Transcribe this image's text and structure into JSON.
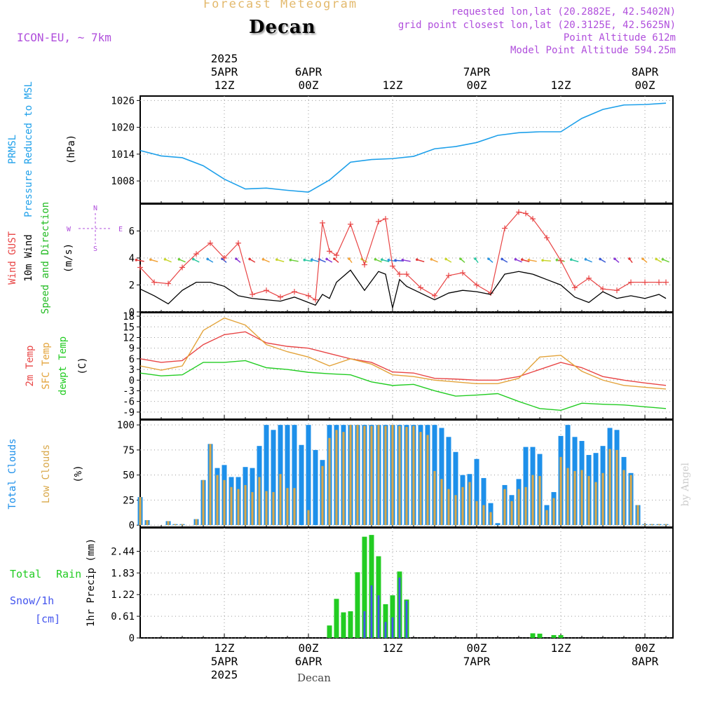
{
  "header": {
    "title": "Forecast Meteogram",
    "place": "Decan",
    "model": "ICON-EU, ~ 7km",
    "requested": "requested lon,lat (20.2882E, 42.5402N)",
    "grid_point": "grid point closest lon,lat (20.3125E, 42.5625N)",
    "point_altitude": "Point Altitude 612m",
    "model_altitude": "Model Point Altitude 594.25m",
    "credit": "by Angel",
    "footer": "Decan"
  },
  "colors": {
    "pressure": "#1ea0ea",
    "gust": "#e84545",
    "wind": "#000000",
    "direction_label": "#22bb22",
    "temp2m": "#e84545",
    "sfc_temp": "#e3a33a",
    "dewpt": "#22cc22",
    "total_clouds": "#1e90ea",
    "low_clouds": "#d9a84a",
    "rain": "#22cc22",
    "snow": "#4455ee",
    "purple": "#b04fdc"
  },
  "time_axis": {
    "top_labels": [
      {
        "hour": 12,
        "lines": [
          "2025",
          "5APR",
          "12Z"
        ]
      },
      {
        "hour": 24,
        "lines": [
          "6APR",
          "00Z"
        ]
      },
      {
        "hour": 36,
        "lines": [
          "12Z"
        ]
      },
      {
        "hour": 48,
        "lines": [
          "7APR",
          "00Z"
        ]
      },
      {
        "hour": 60,
        "lines": [
          "12Z"
        ]
      },
      {
        "hour": 72,
        "lines": [
          "8APR",
          "00Z"
        ]
      }
    ],
    "bottom_labels": [
      {
        "hour": 12,
        "lines": [
          "12Z",
          "5APR",
          "2025"
        ]
      },
      {
        "hour": 24,
        "lines": [
          "00Z",
          "6APR"
        ]
      },
      {
        "hour": 36,
        "lines": [
          "12Z"
        ]
      },
      {
        "hour": 48,
        "lines": [
          "00Z",
          "7APR"
        ]
      },
      {
        "hour": 60,
        "lines": [
          "12Z"
        ]
      },
      {
        "hour": 72,
        "lines": [
          "00Z",
          "8APR"
        ]
      }
    ]
  },
  "chart_data": [
    {
      "type": "line",
      "name": "pressure",
      "ylabels": [
        {
          "text": "PRMSL",
          "color": "#1ea0ea"
        },
        {
          "text": "Pressure Reduced to MSL",
          "color": "#1ea0ea"
        },
        {
          "text": "(hPa)",
          "color": "#000000"
        }
      ],
      "ylim": [
        1003,
        1027
      ],
      "yticks": [
        1008,
        1014,
        1020,
        1026
      ],
      "x": [
        0,
        3,
        6,
        9,
        12,
        15,
        18,
        21,
        24,
        27,
        30,
        33,
        36,
        39,
        42,
        45,
        48,
        51,
        54,
        57,
        60,
        63,
        66,
        69,
        72,
        75
      ],
      "values": [
        1014.8,
        1013.6,
        1013.2,
        1011.4,
        1008.4,
        1006.2,
        1006.4,
        1005.9,
        1005.5,
        1008.2,
        1012.2,
        1012.8,
        1013.0,
        1013.5,
        1015.2,
        1015.7,
        1016.6,
        1018.2,
        1018.8,
        1019.0,
        1019.0,
        1022.0,
        1024.0,
        1025.0,
        1025.1,
        1025.4
      ]
    },
    {
      "type": "line",
      "name": "wind",
      "ylabels": [
        {
          "text": "Wind GUST",
          "color": "#e84545"
        },
        {
          "text": "10m Wind",
          "color": "#000000"
        },
        {
          "text": "Speed and Direction",
          "color": "#22bb22"
        },
        {
          "text": "(m/s)",
          "color": "#000000"
        }
      ],
      "compass": {
        "n": "N",
        "s": "S",
        "w": "W",
        "e": "E"
      },
      "ylim": [
        0,
        8
      ],
      "yticks": [
        0,
        2,
        4,
        6
      ],
      "x": [
        0,
        2,
        4,
        6,
        8,
        10,
        12,
        14,
        16,
        18,
        20,
        22,
        24,
        25,
        26,
        27,
        28,
        30,
        32,
        34,
        35,
        36,
        37,
        38,
        40,
        42,
        44,
        46,
        48,
        50,
        52,
        54,
        55,
        56,
        58,
        60,
        62,
        64,
        66,
        68,
        70,
        72,
        74,
        75
      ],
      "gust": [
        3.3,
        2.2,
        2.1,
        3.3,
        4.3,
        5.1,
        4.0,
        5.1,
        1.3,
        1.6,
        1.1,
        1.5,
        1.2,
        0.9,
        6.6,
        4.5,
        4.2,
        6.5,
        3.5,
        6.7,
        6.9,
        3.4,
        2.8,
        2.8,
        1.8,
        1.2,
        2.7,
        2.9,
        2.0,
        1.4,
        6.2,
        7.4,
        7.3,
        6.9,
        5.5,
        3.8,
        1.8,
        2.5,
        1.7,
        1.6,
        2.2,
        2.2,
        2.2,
        2.2
      ],
      "wind": [
        1.7,
        1.2,
        0.6,
        1.6,
        2.2,
        2.2,
        1.9,
        1.2,
        1.0,
        0.9,
        0.8,
        1.1,
        0.7,
        0.5,
        1.3,
        1.0,
        2.2,
        3.1,
        1.6,
        3.0,
        2.8,
        0.3,
        2.4,
        1.9,
        1.4,
        0.9,
        1.4,
        1.6,
        1.5,
        1.3,
        2.8,
        3.0,
        2.9,
        2.8,
        2.4,
        2.0,
        1.1,
        0.7,
        1.5,
        1.0,
        1.2,
        1.0,
        1.3,
        1.0
      ],
      "direction_band": 3.8,
      "direction_colors": [
        "#e33b3b",
        "#f2a33a",
        "#c9d62e",
        "#6ccf3a",
        "#2bc7a0",
        "#2c96e0",
        "#3a5bd6",
        "#8a3ad6"
      ],
      "arrow_angles_deg": [
        200,
        210,
        220,
        220,
        225,
        230,
        240,
        240,
        230,
        220,
        210,
        200,
        200,
        210,
        220,
        230,
        240,
        250,
        230,
        220,
        210,
        200,
        190,
        200,
        210,
        220,
        230,
        240,
        250,
        240,
        230,
        220,
        210,
        200,
        190,
        200,
        210,
        220,
        230,
        240,
        250,
        240,
        230,
        220
      ]
    },
    {
      "type": "line",
      "name": "temperature",
      "ylabels": [
        {
          "text": "2m Temp",
          "color": "#e84545"
        },
        {
          "text": "SFC Temp",
          "color": "#e3a33a"
        },
        {
          "text": "dewpt Temp",
          "color": "#22cc22"
        },
        {
          "text": "(C)",
          "color": "#000000"
        }
      ],
      "ylim": [
        -11,
        19
      ],
      "yticks": [
        -9,
        -6,
        -3,
        0,
        3,
        6,
        9,
        12,
        15,
        18
      ],
      "x": [
        0,
        3,
        6,
        9,
        12,
        15,
        18,
        21,
        24,
        27,
        30,
        33,
        36,
        39,
        42,
        45,
        48,
        51,
        54,
        57,
        60,
        63,
        66,
        69,
        72,
        75
      ],
      "temp2m": [
        6.0,
        5.0,
        5.5,
        10.0,
        12.8,
        13.6,
        10.5,
        9.5,
        9.0,
        7.5,
        6.0,
        5.0,
        2.3,
        2.0,
        0.5,
        0.3,
        0.0,
        0.0,
        1.0,
        3.0,
        5.0,
        3.5,
        1.0,
        0.0,
        -0.8,
        -1.5
      ],
      "sfc_temp": [
        4.0,
        2.8,
        4.0,
        14.0,
        17.5,
        15.5,
        10.0,
        8.0,
        6.5,
        4.0,
        6.0,
        4.5,
        1.5,
        1.0,
        0.0,
        -0.5,
        -1.0,
        -1.0,
        0.5,
        6.5,
        7.0,
        2.5,
        0.0,
        -1.5,
        -2.0,
        -2.5
      ],
      "dewpt": [
        2.0,
        1.2,
        1.5,
        5.0,
        5.0,
        5.5,
        3.5,
        3.0,
        2.2,
        1.8,
        1.5,
        -0.5,
        -1.5,
        -1.2,
        -3.0,
        -4.5,
        -4.2,
        -3.8,
        -6.0,
        -8.0,
        -8.5,
        -6.5,
        -6.8,
        -7.0,
        -7.5,
        -8.0
      ]
    },
    {
      "type": "bar",
      "name": "clouds",
      "ylabels": [
        {
          "text": "Total Clouds",
          "color": "#1e90ea"
        },
        {
          "text": "Low Clouds",
          "color": "#d9a84a"
        },
        {
          "text": "(%)",
          "color": "#000000"
        }
      ],
      "ylim": [
        -2,
        105
      ],
      "yticks": [
        0,
        25,
        50,
        75,
        100
      ],
      "x_start": 0,
      "x_step": 1,
      "total": [
        28,
        5,
        0,
        0,
        4,
        1,
        1,
        0,
        6,
        45,
        81,
        57,
        60,
        48,
        48,
        58,
        57,
        79,
        100,
        95,
        100,
        100,
        100,
        80,
        100,
        75,
        65,
        100,
        100,
        100,
        100,
        100,
        100,
        100,
        100,
        100,
        100,
        100,
        100,
        100,
        100,
        100,
        100,
        97,
        88,
        73,
        50,
        51,
        66,
        47,
        22,
        2,
        40,
        30,
        46,
        78,
        78,
        71,
        20,
        33,
        89,
        100,
        88,
        84,
        70,
        72,
        79,
        97,
        95,
        68,
        52,
        20,
        1,
        1,
        1,
        1
      ],
      "low": [
        28,
        5,
        0,
        0,
        4,
        1,
        1,
        0,
        6,
        45,
        81,
        50,
        45,
        38,
        36,
        40,
        33,
        48,
        34,
        33,
        51,
        37,
        37,
        0,
        15,
        0,
        59,
        87,
        95,
        93,
        100,
        100,
        99,
        99,
        100,
        99,
        100,
        99,
        98,
        99,
        93,
        90,
        54,
        46,
        36,
        30,
        38,
        43,
        24,
        20,
        13,
        0,
        36,
        24,
        36,
        38,
        50,
        49,
        15,
        27,
        68,
        57,
        54,
        55,
        49,
        43,
        52,
        76,
        75,
        55,
        50,
        20,
        1,
        1,
        1,
        1
      ]
    },
    {
      "type": "bar",
      "name": "precipitation",
      "ylabels": [
        {
          "text": "Total",
          "color": "#22cc22"
        },
        {
          "text": "Rain",
          "color": "#22cc22"
        },
        {
          "text": "Snow/1h",
          "color": "#4455ee"
        },
        {
          "text": "[cm]",
          "color": "#4455ee"
        },
        {
          "text": "1hr Precip (mm)",
          "color": "#000000"
        }
      ],
      "ylim": [
        0,
        3.1
      ],
      "yticks": [
        0,
        0.61,
        1.22,
        1.83,
        2.44
      ],
      "x_start": 0,
      "x_step": 1,
      "total": [
        0,
        0,
        0,
        0,
        0,
        0,
        0,
        0,
        0,
        0,
        0,
        0,
        0,
        0,
        0,
        0,
        0,
        0,
        0,
        0,
        0,
        0,
        0,
        0,
        0,
        0,
        0,
        0.35,
        1.1,
        0.72,
        0.75,
        1.85,
        2.85,
        2.9,
        2.3,
        0.95,
        1.2,
        1.87,
        1.08,
        0,
        0,
        0,
        0,
        0,
        0,
        0,
        0,
        0,
        0,
        0,
        0,
        0,
        0,
        0,
        0,
        0,
        0.13,
        0.12,
        0,
        0.08,
        0.08,
        0,
        0,
        0,
        0,
        0,
        0,
        0,
        0,
        0,
        0,
        0,
        0,
        0,
        0,
        0
      ],
      "snow": [
        0,
        0,
        0,
        0,
        0,
        0,
        0,
        0,
        0,
        0,
        0,
        0,
        0,
        0,
        0,
        0,
        0,
        0,
        0,
        0,
        0,
        0,
        0,
        0,
        0,
        0,
        0,
        0,
        0,
        0,
        0,
        0,
        0.75,
        1.48,
        1.2,
        0.45,
        0.58,
        1.7,
        1.05,
        0,
        0,
        0,
        0,
        0,
        0,
        0,
        0,
        0,
        0,
        0,
        0,
        0,
        0,
        0,
        0,
        0,
        0,
        0,
        0,
        0,
        0,
        0,
        0,
        0,
        0,
        0,
        0,
        0,
        0,
        0,
        0,
        0,
        0,
        0,
        0,
        0
      ]
    }
  ]
}
